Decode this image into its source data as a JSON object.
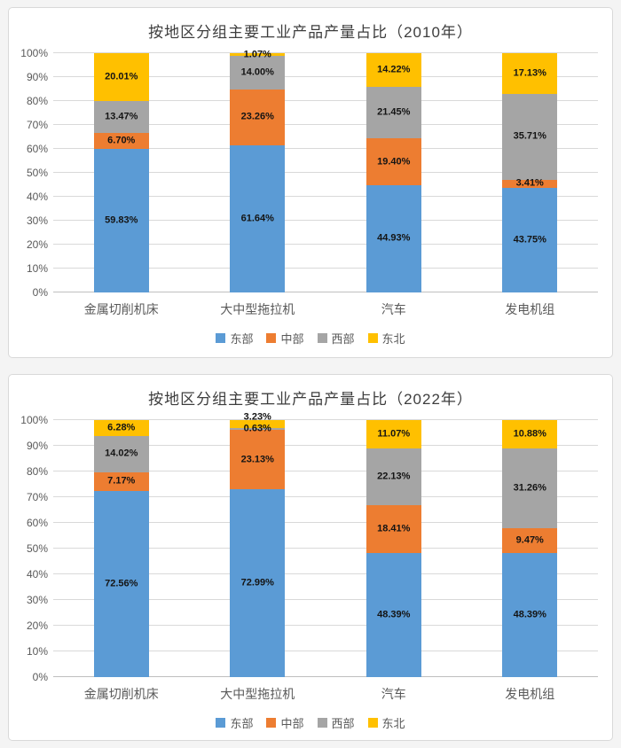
{
  "page": {
    "background": "#f4f4f4",
    "panel_background": "#ffffff",
    "panel_border_color": "#d9d9d9"
  },
  "legend": {
    "position": "bottom",
    "items": [
      {
        "key": "east",
        "label": "东部",
        "color": "#5B9BD5"
      },
      {
        "key": "central",
        "label": "中部",
        "color": "#ED7D31"
      },
      {
        "key": "west",
        "label": "西部",
        "color": "#A5A5A5"
      },
      {
        "key": "northeast",
        "label": "东北",
        "color": "#FFC000"
      }
    ]
  },
  "chart_data": [
    {
      "type": "bar",
      "stacked": true,
      "title": "按地区分组主要工业产品产量占比（2010年）",
      "categories": [
        "金属切削机床",
        "大中型拖拉机",
        "汽车",
        "发电机组"
      ],
      "series": [
        {
          "key": "east",
          "name": "东部",
          "color": "#5B9BD5",
          "values": [
            59.83,
            61.64,
            44.93,
            43.75
          ]
        },
        {
          "key": "central",
          "name": "中部",
          "color": "#ED7D31",
          "values": [
            6.7,
            23.26,
            19.4,
            3.41
          ]
        },
        {
          "key": "west",
          "name": "西部",
          "color": "#A5A5A5",
          "values": [
            13.47,
            14.0,
            21.45,
            35.71
          ]
        },
        {
          "key": "northeast",
          "name": "东北",
          "color": "#FFC000",
          "values": [
            20.01,
            1.07,
            14.22,
            17.13
          ]
        }
      ],
      "y_ticks": [
        "0%",
        "10%",
        "20%",
        "30%",
        "40%",
        "50%",
        "60%",
        "70%",
        "80%",
        "90%",
        "100%"
      ],
      "ylim": [
        0,
        100
      ],
      "grid": true,
      "legend_position": "bottom",
      "data_label_format": "0.00%"
    },
    {
      "type": "bar",
      "stacked": true,
      "title": "按地区分组主要工业产品产量占比（2022年）",
      "categories": [
        "金属切削机床",
        "大中型拖拉机",
        "汽车",
        "发电机组"
      ],
      "series": [
        {
          "key": "east",
          "name": "东部",
          "color": "#5B9BD5",
          "values": [
            72.56,
            72.99,
            48.39,
            48.39
          ]
        },
        {
          "key": "central",
          "name": "中部",
          "color": "#ED7D31",
          "values": [
            7.17,
            23.13,
            18.41,
            9.47
          ]
        },
        {
          "key": "west",
          "name": "西部",
          "color": "#A5A5A5",
          "values": [
            14.02,
            0.63,
            22.13,
            31.26
          ]
        },
        {
          "key": "northeast",
          "name": "东北",
          "color": "#FFC000",
          "values": [
            6.28,
            3.23,
            11.07,
            10.88
          ]
        }
      ],
      "y_ticks": [
        "0%",
        "10%",
        "20%",
        "30%",
        "40%",
        "50%",
        "60%",
        "70%",
        "80%",
        "90%",
        "100%"
      ],
      "ylim": [
        0,
        100
      ],
      "grid": true,
      "legend_position": "bottom",
      "data_label_format": "0.00%"
    }
  ]
}
